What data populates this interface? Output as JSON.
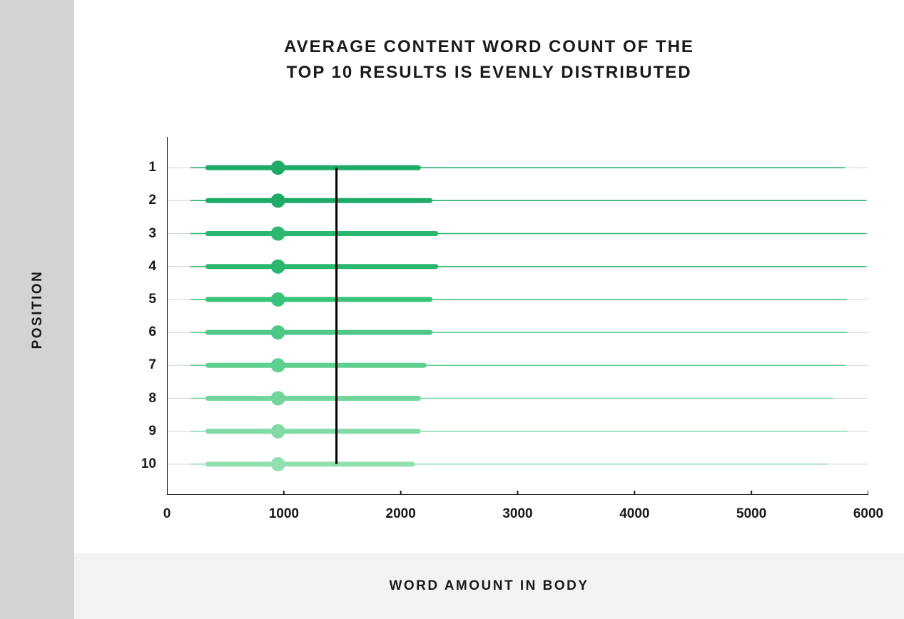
{
  "chart": {
    "type": "boxplot",
    "title_line1": "AVERAGE CONTENT WORD COUNT OF THE",
    "title_line2": "TOP 10 RESULTS IS EVENLY DISTRIBUTED",
    "title_fontsize": 24,
    "title_letterspacing": 2,
    "y_axis_label": "POSITION",
    "x_axis_label": "WORD AMOUNT IN BODY",
    "axis_label_fontsize": 19,
    "tick_fontsize": 19,
    "background_color": "#ffffff",
    "sidebar_color": "#d2d3d2",
    "bottombar_color": "#f3f3f3",
    "grid_color": "#d3d3d3",
    "axis_color": "#1a1a1a",
    "reference_line_color": "#000000",
    "reference_line_x": 1450,
    "xlim": [
      0,
      6000
    ],
    "xtick_step": 1000,
    "xticks": [
      0,
      1000,
      2000,
      3000,
      4000,
      5000,
      6000
    ],
    "y_categories": [
      "1",
      "2",
      "3",
      "4",
      "5",
      "6",
      "7",
      "8",
      "9",
      "10"
    ],
    "thick_line_width": 7,
    "thin_line_width": 1.5,
    "median_dot_radius": 10,
    "row_colors": [
      "#1eab67",
      "#1eab67",
      "#2bb770",
      "#2bb770",
      "#39c27a",
      "#4ec886",
      "#5fcf91",
      "#71d59c",
      "#82dba7",
      "#91e0b1"
    ],
    "rows": [
      {
        "position": "1",
        "whisker_low": 200,
        "q1": 350,
        "median": 950,
        "q3": 2150,
        "whisker_high": 5800
      },
      {
        "position": "2",
        "whisker_low": 200,
        "q1": 350,
        "median": 950,
        "q3": 2250,
        "whisker_high": 5980
      },
      {
        "position": "3",
        "whisker_low": 200,
        "q1": 350,
        "median": 950,
        "q3": 2300,
        "whisker_high": 5980
      },
      {
        "position": "4",
        "whisker_low": 200,
        "q1": 350,
        "median": 950,
        "q3": 2300,
        "whisker_high": 5980
      },
      {
        "position": "5",
        "whisker_low": 200,
        "q1": 350,
        "median": 950,
        "q3": 2250,
        "whisker_high": 5820
      },
      {
        "position": "6",
        "whisker_low": 200,
        "q1": 350,
        "median": 950,
        "q3": 2250,
        "whisker_high": 5820
      },
      {
        "position": "7",
        "whisker_low": 200,
        "q1": 350,
        "median": 950,
        "q3": 2200,
        "whisker_high": 5800
      },
      {
        "position": "8",
        "whisker_low": 200,
        "q1": 350,
        "median": 950,
        "q3": 2150,
        "whisker_high": 5700
      },
      {
        "position": "9",
        "whisker_low": 200,
        "q1": 350,
        "median": 950,
        "q3": 2150,
        "whisker_high": 5820
      },
      {
        "position": "10",
        "whisker_low": 200,
        "q1": 350,
        "median": 950,
        "q3": 2100,
        "whisker_high": 5650
      }
    ]
  }
}
